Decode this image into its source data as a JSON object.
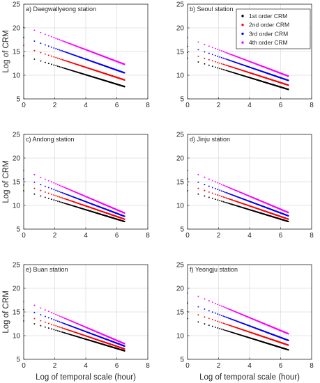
{
  "chart_data": [
    {
      "type": "scatter",
      "title": "a) Daegwallyeong station",
      "xlabel": "",
      "ylabel": "Log of CRM",
      "xlim": [
        0,
        8
      ],
      "ylim": [
        5,
        25
      ],
      "xticks": [
        "0",
        "2",
        "4",
        "6",
        "8"
      ],
      "yticks": [
        "5",
        "10",
        "15",
        "20",
        "25"
      ],
      "grid": true,
      "series": [
        {
          "name": "1st order CRM",
          "color": "#000000",
          "x": [
            0.0,
            0.69,
            6.5
          ],
          "y": [
            14.1,
            13.4,
            7.6
          ]
        },
        {
          "name": "2nd order CRM",
          "color": "#ff0000",
          "x": [
            0.0,
            0.69,
            6.5
          ],
          "y": [
            16.3,
            15.2,
            9.0
          ]
        },
        {
          "name": "3rd order CRM",
          "color": "#0000ff",
          "x": [
            0.0,
            0.69,
            6.5
          ],
          "y": [
            18.0,
            17.2,
            10.5
          ]
        },
        {
          "name": "4th order CRM",
          "color": "#ff00ff",
          "x": [
            0.0,
            0.69,
            6.5
          ],
          "y": [
            20.1,
            19.5,
            12.3
          ]
        }
      ]
    },
    {
      "type": "scatter",
      "title": "b) Seoul station",
      "xlabel": "",
      "ylabel": "",
      "xlim": [
        0,
        8
      ],
      "ylim": [
        5,
        25
      ],
      "xticks": [
        "0",
        "2",
        "4",
        "6",
        "8"
      ],
      "yticks": [
        "5",
        "10",
        "15",
        "20",
        "25"
      ],
      "grid": true,
      "legend": {
        "position": "top-right",
        "entries": [
          "1st order CRM",
          "2nd order CRM",
          "3rd order CRM",
          "4th order CRM"
        ]
      },
      "series": [
        {
          "name": "1st order CRM",
          "color": "#000000",
          "x": [
            0.0,
            0.69,
            6.5
          ],
          "y": [
            13.6,
            12.8,
            7.0
          ]
        },
        {
          "name": "2nd order CRM",
          "color": "#ff0000",
          "x": [
            0.0,
            0.69,
            6.5
          ],
          "y": [
            14.8,
            14.0,
            7.9
          ]
        },
        {
          "name": "3rd order CRM",
          "color": "#0000ff",
          "x": [
            0.0,
            0.69,
            6.5
          ],
          "y": [
            16.1,
            15.4,
            8.9
          ]
        },
        {
          "name": "4th order CRM",
          "color": "#ff00ff",
          "x": [
            0.0,
            0.69,
            6.5
          ],
          "y": [
            18.0,
            17.0,
            9.8
          ]
        }
      ]
    },
    {
      "type": "scatter",
      "title": "c) Andong station",
      "xlabel": "",
      "ylabel": "Log of CRM",
      "xlim": [
        0,
        8
      ],
      "ylim": [
        5,
        25
      ],
      "xticks": [
        "0",
        "2",
        "4",
        "6",
        "8"
      ],
      "yticks": [
        "5",
        "10",
        "15",
        "20",
        "25"
      ],
      "grid": true,
      "series": [
        {
          "name": "1st order CRM",
          "color": "#000000",
          "x": [
            0.0,
            0.69,
            6.5
          ],
          "y": [
            13.1,
            12.4,
            6.6
          ]
        },
        {
          "name": "2nd order CRM",
          "color": "#ff0000",
          "x": [
            0.0,
            0.69,
            6.5
          ],
          "y": [
            14.3,
            13.6,
            7.1
          ]
        },
        {
          "name": "3rd order CRM",
          "color": "#0000ff",
          "x": [
            0.0,
            0.69,
            6.5
          ],
          "y": [
            15.6,
            14.9,
            7.7
          ]
        },
        {
          "name": "4th order CRM",
          "color": "#ff00ff",
          "x": [
            0.0,
            0.69,
            6.5
          ],
          "y": [
            17.4,
            16.5,
            8.4
          ]
        }
      ]
    },
    {
      "type": "scatter",
      "title": "d) Jinju station",
      "xlabel": "",
      "ylabel": "",
      "xlim": [
        0,
        8
      ],
      "ylim": [
        5,
        25
      ],
      "xticks": [
        "0",
        "2",
        "4",
        "6",
        "8"
      ],
      "yticks": [
        "5",
        "10",
        "15",
        "20",
        "25"
      ],
      "grid": true,
      "series": [
        {
          "name": "1st order CRM",
          "color": "#000000",
          "x": [
            0.0,
            0.69,
            6.5
          ],
          "y": [
            13.1,
            12.4,
            6.6
          ]
        },
        {
          "name": "2nd order CRM",
          "color": "#ff0000",
          "x": [
            0.0,
            0.69,
            6.5
          ],
          "y": [
            14.3,
            13.6,
            7.1
          ]
        },
        {
          "name": "3rd order CRM",
          "color": "#0000ff",
          "x": [
            0.0,
            0.69,
            6.5
          ],
          "y": [
            15.6,
            14.9,
            7.8
          ]
        },
        {
          "name": "4th order CRM",
          "color": "#ff00ff",
          "x": [
            0.0,
            0.69,
            6.5
          ],
          "y": [
            17.4,
            16.5,
            8.5
          ]
        }
      ]
    },
    {
      "type": "scatter",
      "title": "e) Buan station",
      "xlabel": "Log of temporal scale (hour)",
      "ylabel": "Log of CRM",
      "xlim": [
        0,
        8
      ],
      "ylim": [
        5,
        25
      ],
      "xticks": [
        "0",
        "2",
        "4",
        "6",
        "8"
      ],
      "yticks": [
        "5",
        "10",
        "15",
        "20",
        "25"
      ],
      "grid": true,
      "series": [
        {
          "name": "1st order CRM",
          "color": "#000000",
          "x": [
            0.0,
            0.69,
            6.5
          ],
          "y": [
            13.1,
            12.5,
            6.8
          ]
        },
        {
          "name": "2nd order CRM",
          "color": "#ff0000",
          "x": [
            0.0,
            0.69,
            6.5
          ],
          "y": [
            14.2,
            13.6,
            7.2
          ]
        },
        {
          "name": "3rd order CRM",
          "color": "#0000ff",
          "x": [
            0.0,
            0.69,
            6.5
          ],
          "y": [
            15.5,
            14.9,
            7.8
          ]
        },
        {
          "name": "4th order CRM",
          "color": "#ff00ff",
          "x": [
            0.0,
            0.69,
            6.5
          ],
          "y": [
            17.2,
            16.4,
            8.3
          ]
        }
      ]
    },
    {
      "type": "scatter",
      "title": "f) Yeongju station",
      "xlabel": "Log of temporal scale (hour)",
      "ylabel": "",
      "xlim": [
        0,
        8
      ],
      "ylim": [
        5,
        25
      ],
      "xticks": [
        "0",
        "2",
        "4",
        "6",
        "8"
      ],
      "yticks": [
        "5",
        "10",
        "15",
        "20",
        "25"
      ],
      "grid": true,
      "series": [
        {
          "name": "1st order CRM",
          "color": "#000000",
          "x": [
            0.0,
            0.69,
            6.5
          ],
          "y": [
            13.6,
            12.9,
            7.0
          ]
        },
        {
          "name": "2nd order CRM",
          "color": "#ff0000",
          "x": [
            0.0,
            0.69,
            6.5
          ],
          "y": [
            15.1,
            14.4,
            8.0
          ]
        },
        {
          "name": "3rd order CRM",
          "color": "#0000ff",
          "x": [
            0.0,
            0.69,
            6.5
          ],
          "y": [
            16.9,
            16.1,
            9.0
          ]
        },
        {
          "name": "4th order CRM",
          "color": "#ff00ff",
          "x": [
            0.0,
            0.69,
            6.5
          ],
          "y": [
            19.0,
            18.3,
            10.4
          ]
        }
      ]
    }
  ]
}
